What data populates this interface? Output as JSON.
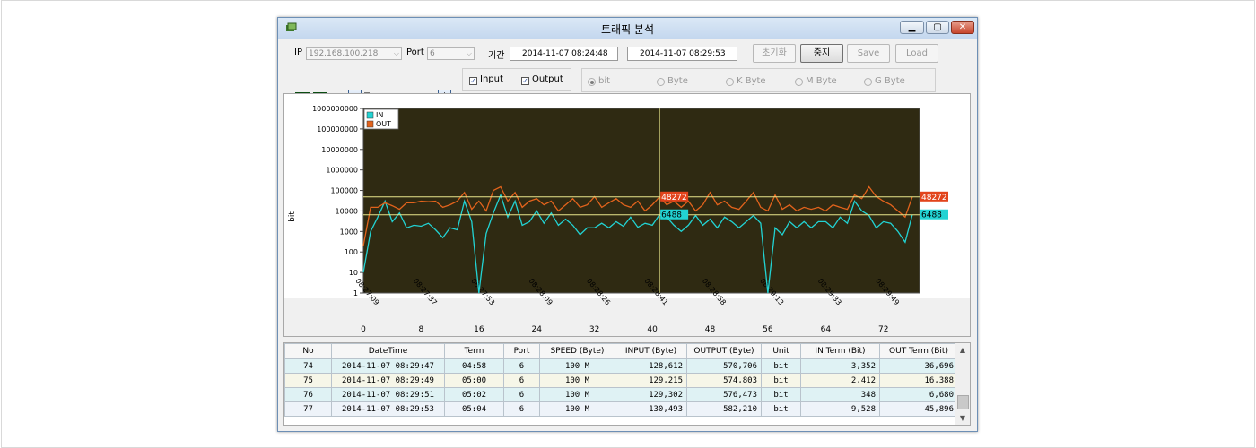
{
  "window": {
    "title": "트래픽 분석"
  },
  "controls": {
    "ip_label": "IP",
    "ip_value": "192.168.100.218",
    "port_label": "Port",
    "port_value": "6",
    "period_label": "기간",
    "start": "2014-11-07 08:24:48",
    "end": "2014-11-07 08:29:53",
    "buttons": {
      "reset": "초기화",
      "stop": "중지",
      "save": "Save",
      "load": "Load"
    },
    "zoom_minus": "−",
    "zoom_plus": "+",
    "input_label": "Input",
    "output_label": "Output",
    "units": [
      "bit",
      "Byte",
      "K Byte",
      "M Byte",
      "G Byte"
    ],
    "selected_unit": "bit"
  },
  "chart_data": {
    "type": "line",
    "ylabel": "bit",
    "yscale": "log",
    "ylim": [
      1,
      1000000000
    ],
    "yticks": [
      "1000000000",
      "100000000",
      "10000000",
      "1000000",
      "100000",
      "10000",
      "1000",
      "100",
      "10",
      "1"
    ],
    "x_time_labels": [
      "08:27:09",
      "08:27:37",
      "08:27:53",
      "08:28:09",
      "08:28:26",
      "08:28:41",
      "08:28:58",
      "08:29:13",
      "08:29:33",
      "08:29:49"
    ],
    "x_index_labels": [
      "0",
      "8",
      "16",
      "24",
      "32",
      "40",
      "48",
      "56",
      "64",
      "72"
    ],
    "xlim": [
      0,
      77
    ],
    "series": [
      {
        "name": "IN",
        "color": "#22d3d3",
        "values": [
          10,
          1000,
          5000,
          30000,
          3000,
          8000,
          1500,
          2000,
          1800,
          2500,
          1200,
          500,
          1500,
          1200,
          30000,
          3000,
          1,
          800,
          8000,
          60000,
          5000,
          30000,
          2000,
          3000,
          10000,
          2500,
          8000,
          2000,
          4000,
          2000,
          700,
          1500,
          1500,
          2500,
          1500,
          3000,
          1800,
          5000,
          1600,
          2500,
          2000,
          6488,
          5000,
          2000,
          1000,
          2000,
          6000,
          2000,
          4000,
          1500,
          5000,
          3000,
          1500,
          3000,
          6000,
          2500,
          1,
          1500,
          700,
          3000,
          1500,
          3000,
          1500,
          3000,
          3000,
          1500,
          5000,
          2500,
          30000,
          10000,
          6000,
          1500,
          3000,
          2500,
          1000,
          300,
          6488
        ]
      },
      {
        "name": "OUT",
        "color": "#e2631c",
        "values": [
          200,
          15000,
          15000,
          25000,
          18000,
          12000,
          25000,
          25000,
          30000,
          28000,
          30000,
          15000,
          20000,
          30000,
          80000,
          12000,
          30000,
          10000,
          100000,
          150000,
          30000,
          80000,
          15000,
          30000,
          40000,
          20000,
          30000,
          10000,
          20000,
          40000,
          15000,
          20000,
          50000,
          15000,
          25000,
          40000,
          20000,
          15000,
          30000,
          10000,
          20000,
          48272,
          20000,
          30000,
          15000,
          30000,
          10000,
          20000,
          80000,
          20000,
          30000,
          15000,
          12000,
          30000,
          80000,
          15000,
          10000,
          60000,
          12000,
          20000,
          10000,
          15000,
          12000,
          15000,
          10000,
          20000,
          15000,
          12000,
          60000,
          40000,
          150000,
          50000,
          30000,
          20000,
          10000,
          5000,
          48272
        ]
      }
    ],
    "cursor_index": 41,
    "markers": {
      "out_value": "48272",
      "in_value": "6488"
    },
    "legend": {
      "position": "top-left"
    }
  },
  "grid": {
    "columns": [
      "No",
      "DateTime",
      "Term",
      "Port",
      "SPEED (Byte)",
      "INPUT (Byte)",
      "OUTPUT (Byte)",
      "Unit",
      "IN Term (Bit)",
      "OUT Term (Bit)"
    ],
    "rows": [
      [
        "74",
        "2014-11-07 08:29:47",
        "04:58",
        "6",
        "100 M",
        "128,612",
        "570,706",
        "bit",
        "3,352",
        "36,696"
      ],
      [
        "75",
        "2014-11-07 08:29:49",
        "05:00",
        "6",
        "100 M",
        "129,215",
        "574,803",
        "bit",
        "2,412",
        "16,388"
      ],
      [
        "76",
        "2014-11-07 08:29:51",
        "05:02",
        "6",
        "100 M",
        "129,302",
        "576,473",
        "bit",
        "348",
        "6,680"
      ],
      [
        "77",
        "2014-11-07 08:29:53",
        "05:04",
        "6",
        "100 M",
        "130,493",
        "582,210",
        "bit",
        "9,528",
        "45,896"
      ]
    ]
  },
  "colors": {
    "plot_bg": "#2f2a12",
    "cursor": "#e8e58a",
    "indicator": "#138a1f"
  }
}
